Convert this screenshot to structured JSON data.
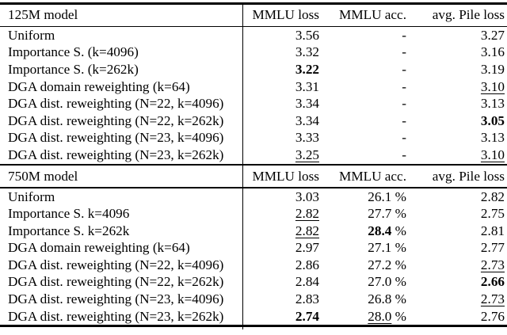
{
  "page": {
    "background_color": "#ffffff",
    "text_color": "#000000"
  },
  "table": {
    "sections": [
      {
        "title": "125M model",
        "columns": [
          "MMLU loss",
          "MMLU acc.",
          "avg. Pile loss"
        ],
        "rows": [
          {
            "model": "Uniform",
            "cells": [
              {
                "t": "3.56"
              },
              {
                "t": "-"
              },
              {
                "t": "3.27"
              }
            ]
          },
          {
            "model": "Importance S. (k=4096)",
            "cells": [
              {
                "t": "3.32"
              },
              {
                "t": "-"
              },
              {
                "t": "3.16"
              }
            ]
          },
          {
            "model": "Importance S. (k=262k)",
            "cells": [
              {
                "t": "3.22",
                "em": "bold"
              },
              {
                "t": "-"
              },
              {
                "t": "3.19"
              }
            ]
          },
          {
            "model": "DGA domain reweighting (k=64)",
            "cells": [
              {
                "t": "3.31"
              },
              {
                "t": "-"
              },
              {
                "t": "3.10",
                "em": "underline"
              }
            ]
          },
          {
            "model": "DGA dist. reweighting (N=22, k=4096)",
            "cells": [
              {
                "t": "3.34"
              },
              {
                "t": "-"
              },
              {
                "t": "3.13"
              }
            ]
          },
          {
            "model": "DGA dist. reweighting (N=22, k=262k)",
            "cells": [
              {
                "t": "3.34"
              },
              {
                "t": "-"
              },
              {
                "t": "3.05",
                "em": "bold"
              }
            ]
          },
          {
            "model": "DGA dist. reweighting (N=23, k=4096)",
            "cells": [
              {
                "t": "3.33"
              },
              {
                "t": "-"
              },
              {
                "t": "3.13"
              }
            ]
          },
          {
            "model": "DGA dist. reweighting (N=23, k=262k)",
            "cells": [
              {
                "t": "3.25",
                "em": "underline"
              },
              {
                "t": "-"
              },
              {
                "t": "3.10",
                "em": "underline"
              }
            ]
          }
        ]
      },
      {
        "title": "750M model",
        "columns": [
          "MMLU loss",
          "MMLU acc.",
          "avg. Pile loss"
        ],
        "rows": [
          {
            "model": "Uniform",
            "cells": [
              {
                "t": "3.03"
              },
              {
                "t": "26.1",
                "suffix": " %"
              },
              {
                "t": "2.82"
              }
            ]
          },
          {
            "model": "Importance S. k=4096",
            "cells": [
              {
                "t": "2.82",
                "em": "underline"
              },
              {
                "t": "27.7",
                "suffix": " %"
              },
              {
                "t": "2.75"
              }
            ]
          },
          {
            "model": "Importance S. k=262k",
            "cells": [
              {
                "t": "2.82",
                "em": "underline"
              },
              {
                "t": "28.4",
                "suffix": " %",
                "em": "bold"
              },
              {
                "t": "2.81"
              }
            ]
          },
          {
            "model": "DGA domain reweighting (k=64)",
            "cells": [
              {
                "t": "2.97"
              },
              {
                "t": "27.1",
                "suffix": " %"
              },
              {
                "t": "2.77"
              }
            ]
          },
          {
            "model": "DGA dist. reweighting (N=22, k=4096)",
            "cells": [
              {
                "t": "2.86"
              },
              {
                "t": "27.2",
                "suffix": " %"
              },
              {
                "t": "2.73",
                "em": "underline"
              }
            ]
          },
          {
            "model": "DGA dist. reweighting (N=22, k=262k)",
            "cells": [
              {
                "t": "2.84"
              },
              {
                "t": "27.0",
                "suffix": " %"
              },
              {
                "t": "2.66",
                "em": "bold"
              }
            ]
          },
          {
            "model": "DGA dist. reweighting (N=23, k=4096)",
            "cells": [
              {
                "t": "2.83"
              },
              {
                "t": "26.8",
                "suffix": " %"
              },
              {
                "t": "2.73",
                "em": "underline"
              }
            ]
          },
          {
            "model": "DGA dist. reweighting (N=23, k=262k)",
            "cells": [
              {
                "t": "2.74",
                "em": "bold"
              },
              {
                "t": "28.0",
                "suffix": " %",
                "em": "underline"
              },
              {
                "t": "2.76"
              }
            ]
          }
        ]
      }
    ]
  }
}
